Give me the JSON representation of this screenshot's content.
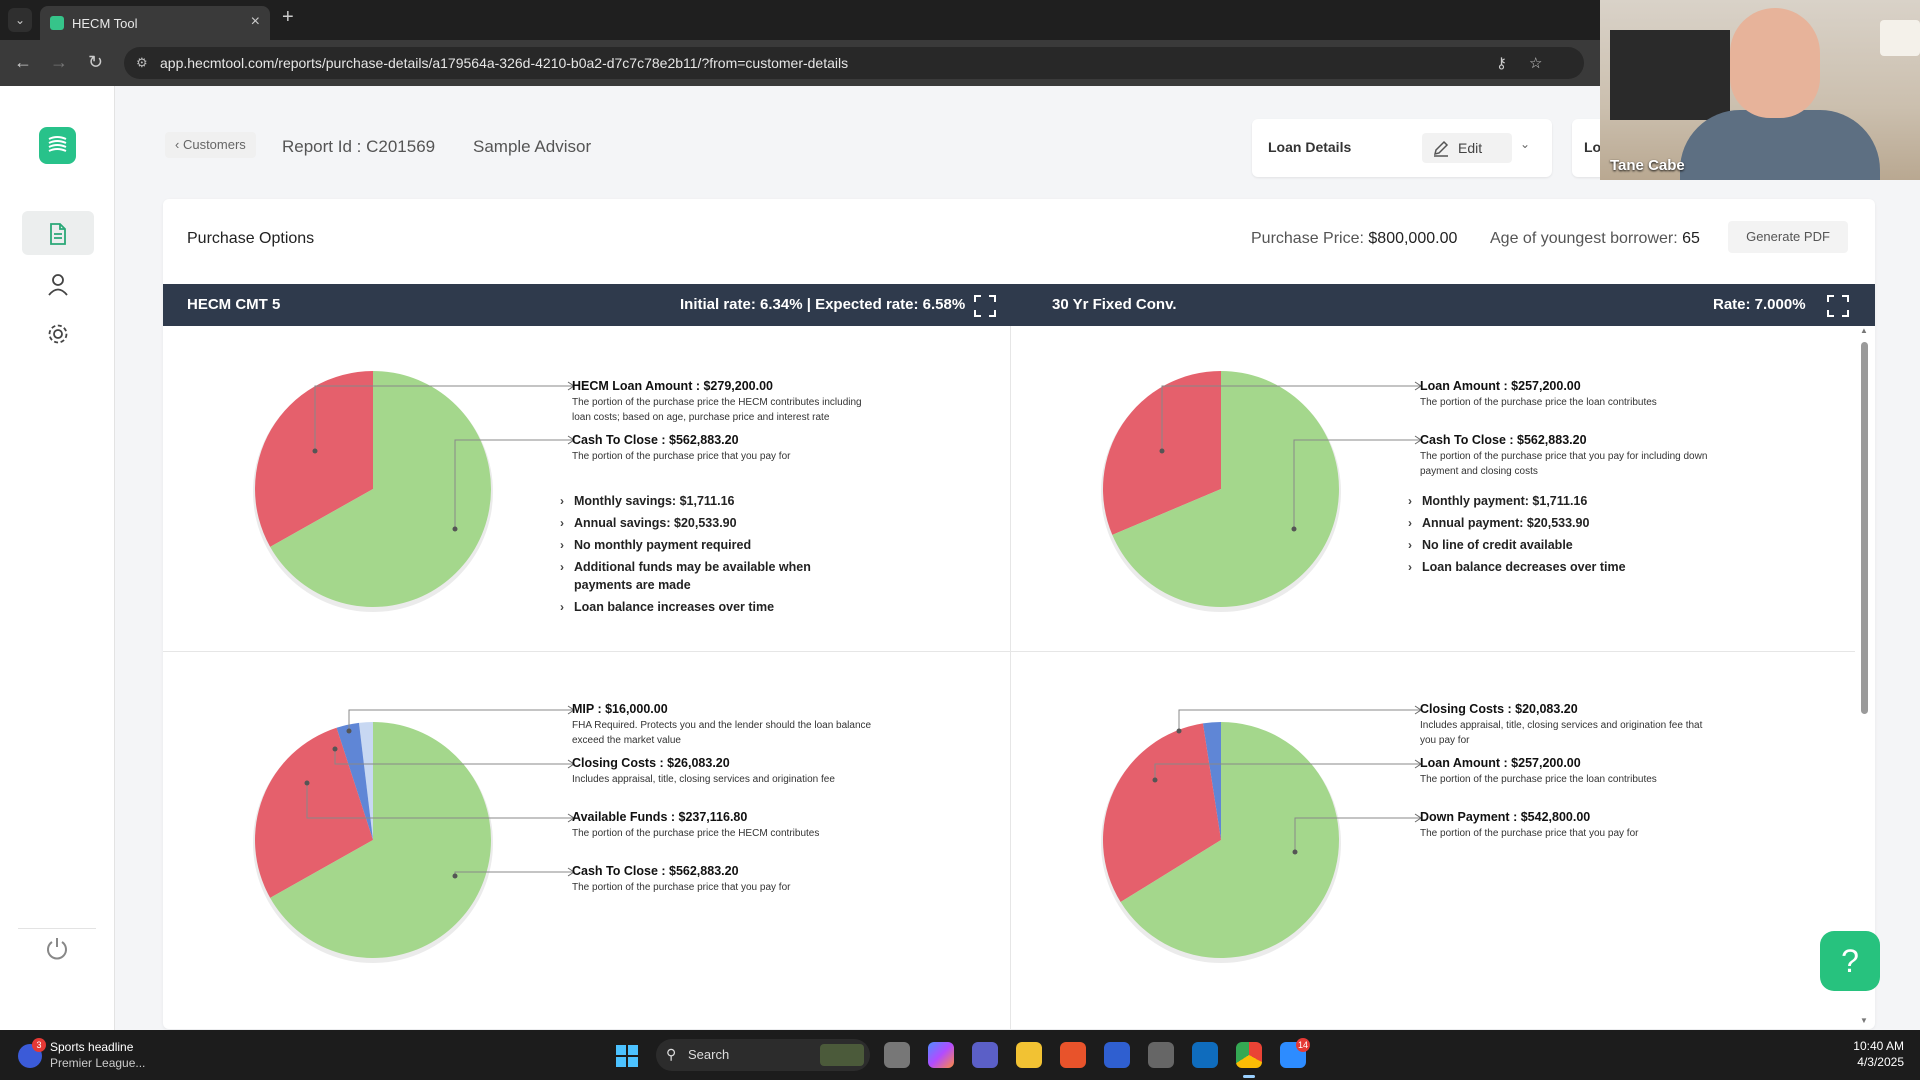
{
  "browser": {
    "tab_title": "HECM Tool",
    "url": "app.hecmtool.com/reports/purchase-details/a179564a-326d-4210-b0a2-d7c7c78e2b11/?from=customer-details"
  },
  "header": {
    "back_label": "Customers",
    "report_id": "Report Id : C201569",
    "advisor": "Sample Advisor",
    "loan_details_label": "Loan Details",
    "edit_label": "Edit",
    "second_box_label": "Lo"
  },
  "card": {
    "title": "Purchase Options",
    "purchase_price_label": "Purchase Price:",
    "purchase_price_value": "$800,000.00",
    "age_label": "Age of youngest borrower:",
    "age_value": "65",
    "generate_pdf": "Generate PDF"
  },
  "strip": {
    "left_name": "HECM CMT 5",
    "left_rates": "Initial rate: 6.34% | Expected rate: 6.58%",
    "right_name": "30 Yr Fixed Conv.",
    "right_rate": "Rate: 7.000%"
  },
  "panels": {
    "hecm_top": {
      "labels": [
        {
          "heading": "HECM Loan Amount : $279,200.00",
          "desc": "The portion of the purchase price the HECM contributes including loan costs; based on age, purchase price and interest rate"
        },
        {
          "heading": "Cash To Close : $562,883.20",
          "desc": "The portion of the purchase price that you pay for"
        }
      ],
      "bullets": [
        "Monthly savings: $1,711.16",
        "Annual savings: $20,533.90",
        "No monthly payment required",
        "Additional funds may be available when payments are made",
        "Loan balance increases over time"
      ]
    },
    "conv_top": {
      "labels": [
        {
          "heading": "Loan Amount : $257,200.00",
          "desc": "The portion of the purchase price the loan contributes"
        },
        {
          "heading": "Cash To Close : $562,883.20",
          "desc": "The portion of the purchase price that you pay for including down payment and closing costs"
        }
      ],
      "bullets": [
        "Monthly payment: $1,711.16",
        "Annual payment: $20,533.90",
        "No line of credit available",
        "Loan balance decreases over time"
      ]
    },
    "hecm_bottom": {
      "labels": [
        {
          "heading": "MIP : $16,000.00",
          "desc": "FHA Required. Protects you and the lender should the loan balance exceed the market value"
        },
        {
          "heading": "Closing Costs : $26,083.20",
          "desc": "Includes appraisal, title, closing services and origination fee"
        },
        {
          "heading": "Available Funds : $237,116.80",
          "desc": "The portion of the purchase price the HECM contributes"
        },
        {
          "heading": "Cash To Close : $562,883.20",
          "desc": "The portion of the purchase price that you pay for"
        }
      ]
    },
    "conv_bottom": {
      "labels": [
        {
          "heading": "Closing Costs : $20,083.20",
          "desc": "Includes appraisal, title, closing services and origination fee that you pay for"
        },
        {
          "heading": "Loan Amount : $257,200.00",
          "desc": "The portion of the purchase price the loan contributes"
        },
        {
          "heading": "Down Payment : $542,800.00",
          "desc": "The portion of the purchase price that you pay for"
        }
      ]
    }
  },
  "chart_data": [
    {
      "type": "pie",
      "categories": [
        "HECM Loan Amount",
        "Cash To Close"
      ],
      "values": [
        279200.0,
        562883.2
      ],
      "colors": [
        "#e5606c",
        "#a4d78c"
      ]
    },
    {
      "type": "pie",
      "categories": [
        "Loan Amount",
        "Cash To Close"
      ],
      "values": [
        257200.0,
        562883.2
      ],
      "colors": [
        "#e5606c",
        "#a4d78c"
      ]
    },
    {
      "type": "pie",
      "categories": [
        "MIP",
        "Closing Costs",
        "Available Funds",
        "Cash To Close"
      ],
      "values": [
        16000.0,
        26083.2,
        237116.8,
        562883.2
      ],
      "colors": [
        "#c8d8f2",
        "#5f86d6",
        "#e5606c",
        "#a4d78c"
      ]
    },
    {
      "type": "pie",
      "categories": [
        "Closing Costs",
        "Loan Amount",
        "Down Payment"
      ],
      "values": [
        20083.2,
        257200.0,
        542800.0
      ],
      "colors": [
        "#5f86d6",
        "#e5606c",
        "#a4d78c"
      ]
    }
  ],
  "webcam": {
    "name": "Tane Cabe"
  },
  "taskbar": {
    "news_title": "Sports headline",
    "news_sub": "Premier League...",
    "news_badge": "3",
    "search_label": "Search",
    "time": "10:40 AM",
    "date": "4/3/2025",
    "app_badge": "14"
  },
  "colors": {
    "accent": "#28c28a",
    "strip": "#2f3a4c",
    "pie_red": "#e5606c",
    "pie_green": "#a4d78c",
    "pie_blue": "#5f86d6"
  }
}
